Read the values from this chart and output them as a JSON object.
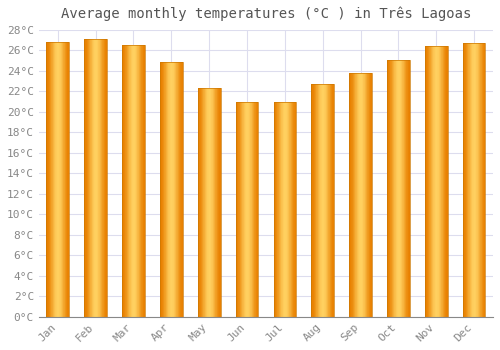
{
  "title": "Average monthly temperatures (°C ) in Três Lagoas",
  "months": [
    "Jan",
    "Feb",
    "Mar",
    "Apr",
    "May",
    "Jun",
    "Jul",
    "Aug",
    "Sep",
    "Oct",
    "Nov",
    "Dec"
  ],
  "values": [
    26.8,
    27.1,
    26.5,
    24.8,
    22.3,
    20.9,
    20.9,
    22.7,
    23.8,
    25.0,
    26.4,
    26.7
  ],
  "bar_color_center": "#FFD060",
  "bar_color_edge": "#E88000",
  "background_color": "#FFFFFF",
  "plot_bg_color": "#FFFFFF",
  "grid_color": "#DDDDEE",
  "ylim": [
    0,
    28
  ],
  "ytick_step": 2,
  "title_fontsize": 10,
  "tick_fontsize": 8,
  "bar_width": 0.6
}
